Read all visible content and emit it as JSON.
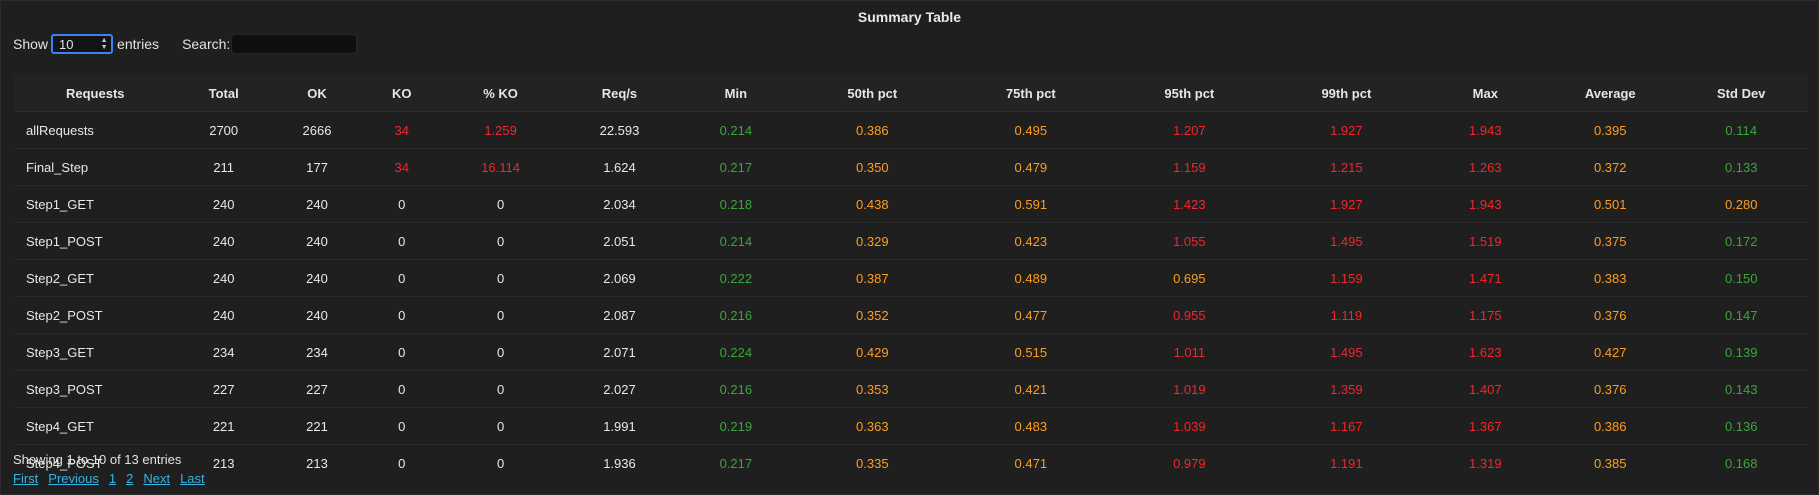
{
  "panel": {
    "title": "Summary Table"
  },
  "controls": {
    "show_label": "Show",
    "page_size": "10",
    "entries_label": "entries",
    "search_label": "Search:",
    "search_value": ""
  },
  "table": {
    "columns": [
      "Requests",
      "Total",
      "OK",
      "KO",
      "% KO",
      "Req/s",
      "Min",
      "50th pct",
      "75th pct",
      "95th pct",
      "99th pct",
      "Max",
      "Average",
      "Std Dev"
    ],
    "rows": [
      [
        "allRequests",
        "2700",
        "2666",
        "34",
        "1.259",
        "22.593",
        "0.214",
        "0.386",
        "0.495",
        "1.207",
        "1.927",
        "1.943",
        "0.395",
        "0.114"
      ],
      [
        "Final_Step",
        "211",
        "177",
        "34",
        "16.114",
        "1.624",
        "0.217",
        "0.350",
        "0.479",
        "1.159",
        "1.215",
        "1.263",
        "0.372",
        "0.133"
      ],
      [
        "Step1_GET",
        "240",
        "240",
        "0",
        "0",
        "2.034",
        "0.218",
        "0.438",
        "0.591",
        "1.423",
        "1.927",
        "1.943",
        "0.501",
        "0.280"
      ],
      [
        "Step1_POST",
        "240",
        "240",
        "0",
        "0",
        "2.051",
        "0.214",
        "0.329",
        "0.423",
        "1.055",
        "1.495",
        "1.519",
        "0.375",
        "0.172"
      ],
      [
        "Step2_GET",
        "240",
        "240",
        "0",
        "0",
        "2.069",
        "0.222",
        "0.387",
        "0.489",
        "0.695",
        "1.159",
        "1.471",
        "0.383",
        "0.150"
      ],
      [
        "Step2_POST",
        "240",
        "240",
        "0",
        "0",
        "2.087",
        "0.216",
        "0.352",
        "0.477",
        "0.955",
        "1.119",
        "1.175",
        "0.376",
        "0.147"
      ],
      [
        "Step3_GET",
        "234",
        "234",
        "0",
        "0",
        "2.071",
        "0.224",
        "0.429",
        "0.515",
        "1.011",
        "1.495",
        "1.623",
        "0.427",
        "0.139"
      ],
      [
        "Step3_POST",
        "227",
        "227",
        "0",
        "0",
        "2.027",
        "0.216",
        "0.353",
        "0.421",
        "1.019",
        "1.359",
        "1.407",
        "0.376",
        "0.143"
      ],
      [
        "Step4_GET",
        "221",
        "221",
        "0",
        "0",
        "1.991",
        "0.219",
        "0.363",
        "0.483",
        "1.039",
        "1.167",
        "1.367",
        "0.386",
        "0.136"
      ],
      [
        "Step4_POST",
        "213",
        "213",
        "0",
        "0",
        "1.936",
        "0.217",
        "0.335",
        "0.471",
        "0.979",
        "1.191",
        "1.319",
        "0.385",
        "0.168"
      ]
    ],
    "cell_colors": [
      [
        "white",
        "white",
        "white",
        "red",
        "red",
        "white",
        "green",
        "orange",
        "orange",
        "red",
        "red",
        "red",
        "orange",
        "green"
      ],
      [
        "white",
        "white",
        "white",
        "red",
        "red",
        "white",
        "green",
        "orange",
        "orange",
        "red",
        "red",
        "red",
        "orange",
        "green"
      ],
      [
        "white",
        "white",
        "white",
        "white",
        "white",
        "white",
        "green",
        "orange",
        "orange",
        "red",
        "red",
        "red",
        "orange",
        "orange"
      ],
      [
        "white",
        "white",
        "white",
        "white",
        "white",
        "white",
        "green",
        "orange",
        "orange",
        "red",
        "red",
        "red",
        "orange",
        "green"
      ],
      [
        "white",
        "white",
        "white",
        "white",
        "white",
        "white",
        "green",
        "orange",
        "orange",
        "orange",
        "red",
        "red",
        "orange",
        "green"
      ],
      [
        "white",
        "white",
        "white",
        "white",
        "white",
        "white",
        "green",
        "orange",
        "orange",
        "red",
        "red",
        "red",
        "orange",
        "green"
      ],
      [
        "white",
        "white",
        "white",
        "white",
        "white",
        "white",
        "green",
        "orange",
        "orange",
        "red",
        "red",
        "red",
        "orange",
        "green"
      ],
      [
        "white",
        "white",
        "white",
        "white",
        "white",
        "white",
        "green",
        "orange",
        "orange",
        "red",
        "red",
        "red",
        "orange",
        "green"
      ],
      [
        "white",
        "white",
        "white",
        "white",
        "white",
        "white",
        "green",
        "orange",
        "orange",
        "red",
        "red",
        "red",
        "orange",
        "green"
      ],
      [
        "white",
        "white",
        "white",
        "white",
        "white",
        "white",
        "green",
        "orange",
        "orange",
        "red",
        "red",
        "red",
        "orange",
        "green"
      ]
    ]
  },
  "footer": {
    "info": "Showing 1 to 10 of 13 entries",
    "pager": [
      "First",
      "Previous",
      "1",
      "2",
      "Next",
      "Last"
    ]
  },
  "colors": {
    "red": "#f2262b",
    "orange": "#ff9d1e",
    "green": "#3ca53a",
    "white": "#e8e8e9",
    "link": "#33b5e5",
    "focus": "#3b82f6"
  }
}
